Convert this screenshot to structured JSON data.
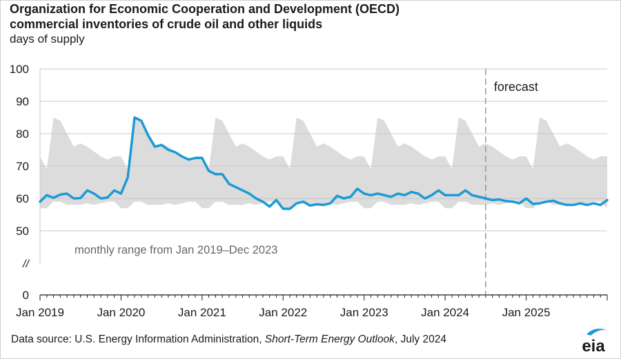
{
  "chart_data": {
    "type": "line",
    "title": "Organization for Economic Cooperation and Development (OECD)",
    "subtitle": "commercial inventories of crude oil  and other liquids",
    "ylabel": "days of supply",
    "ylim": [
      0,
      100
    ],
    "yticks": [
      "100",
      "90",
      "80",
      "70",
      "60",
      "50",
      "//",
      "0"
    ],
    "xtick_labels": [
      "Jan 2019",
      "Jan 2020",
      "Jan 2021",
      "Jan 2022",
      "Jan 2023",
      "Jan 2024",
      "Jan 2025"
    ],
    "grid": true,
    "axis_break": true,
    "x_start": "2019-01",
    "forecast_start": "2024-07",
    "annotations": {
      "forecast": "forecast",
      "range_label": "monthly range from Jan 2019–Dec 2023"
    },
    "series": [
      {
        "color": "#1c9ad6",
        "values": [
          59.0,
          61.0,
          60.2,
          61.2,
          61.5,
          60.0,
          60.1,
          62.5,
          61.5,
          60.0,
          60.3,
          62.5,
          61.5,
          66.5,
          85.0,
          84.0,
          79.5,
          76.0,
          76.5,
          75.0,
          74.3,
          73.0,
          72.0,
          72.5,
          72.5,
          68.5,
          67.5,
          67.5,
          64.5,
          63.5,
          62.5,
          61.5,
          60.0,
          59.0,
          57.5,
          59.5,
          56.8,
          56.8,
          58.5,
          59.0,
          57.8,
          58.2,
          58.0,
          58.5,
          60.8,
          60.0,
          60.5,
          63.0,
          61.5,
          61.0,
          61.5,
          61.0,
          60.5,
          61.5,
          61.0,
          62.0,
          61.5,
          60.0,
          61.0,
          62.5,
          61.0,
          61.0,
          61.0,
          62.5,
          61.0,
          60.5,
          60.0,
          59.5,
          59.7,
          59.2,
          59.0,
          58.5,
          60.0,
          58.3,
          58.5,
          59.0,
          59.3,
          58.5,
          58.0,
          58.0,
          58.5,
          58.0,
          58.5,
          58.0,
          59.5
        ]
      }
    ],
    "range_band": {
      "color": "#dcdcdc",
      "high": [
        73.0,
        69.0,
        85.0,
        84.0,
        80.0,
        76.0,
        77.0,
        76.0,
        74.5,
        73.0,
        72.0,
        73.0
      ],
      "low": [
        57.0,
        57.0,
        59.0,
        59.0,
        58.0,
        58.0,
        58.0,
        58.5,
        58.0,
        58.5,
        59.0,
        59.0
      ]
    }
  },
  "source": {
    "prefix": "Data source: U.S. Energy Information Administration, ",
    "publication": "Short-Term Energy Outlook",
    "suffix": ", July 2024"
  },
  "logo": {
    "text": "eia",
    "color": "#1c9ad6"
  }
}
